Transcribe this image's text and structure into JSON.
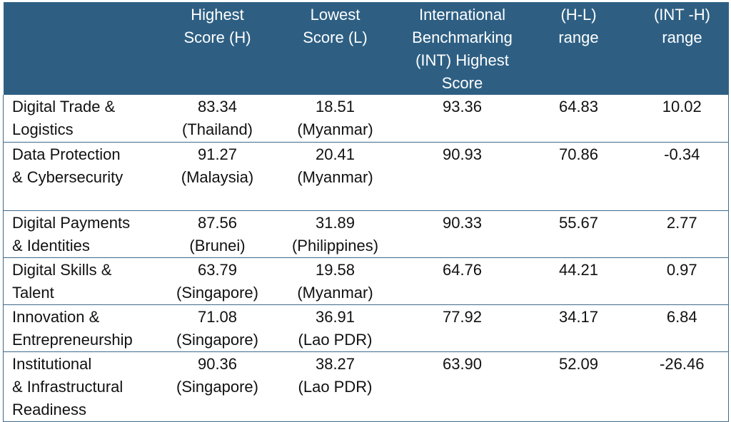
{
  "table": {
    "headers": [
      "",
      "Highest\nScore (H)",
      "Lowest\nScore (L)",
      "International\nBenchmarking\n(INT) Highest\nScore",
      "(H-L)\nrange",
      "(INT -H)\nrange"
    ],
    "header_lines": [
      [],
      [
        "Highest",
        "Score (H)"
      ],
      [
        "Lowest",
        "Score (L)"
      ],
      [
        "International",
        "Benchmarking",
        "(INT) Highest",
        "Score"
      ],
      [
        "(H-L)",
        "range"
      ],
      [
        "(INT -H)",
        "range"
      ]
    ],
    "rows": [
      {
        "category": [
          "Digital Trade &",
          "Logistics"
        ],
        "highest": [
          "83.34",
          "(Thailand)"
        ],
        "lowest": [
          "18.51",
          "(Myanmar)"
        ],
        "int_highest": "93.36",
        "h_l_range": "64.83",
        "int_h_range": "10.02"
      },
      {
        "category": [
          "Data Protection",
          "& Cybersecurity"
        ],
        "highest": [
          "91.27",
          "(Malaysia)"
        ],
        "lowest": [
          "20.41",
          "(Myanmar)"
        ],
        "int_highest": "90.93",
        "h_l_range": "70.86",
        "int_h_range": "-0.34"
      },
      {
        "category": [
          "Digital Payments",
          "& Identities"
        ],
        "highest": [
          "87.56",
          "(Brunei)"
        ],
        "lowest": [
          "31.89",
          "(Philippines)"
        ],
        "int_highest": "90.33",
        "h_l_range": "55.67",
        "int_h_range": "2.77"
      },
      {
        "category": [
          "Digital Skills &",
          "Talent"
        ],
        "highest": [
          "63.79",
          "(Singapore)"
        ],
        "lowest": [
          "19.58",
          "(Myanmar)"
        ],
        "int_highest": "64.76",
        "h_l_range": "44.21",
        "int_h_range": "0.97"
      },
      {
        "category": [
          "Innovation &",
          "Entrepreneurship"
        ],
        "highest": [
          "71.08",
          "(Singapore)"
        ],
        "lowest": [
          "36.91",
          "(Lao PDR)"
        ],
        "int_highest": "77.92",
        "h_l_range": "34.17",
        "int_h_range": "6.84"
      },
      {
        "category": [
          "Institutional",
          "& Infrastructural",
          "Readiness"
        ],
        "highest": [
          "90.36",
          "(Singapore)"
        ],
        "lowest": [
          "38.27",
          "(Lao PDR)"
        ],
        "int_highest": "63.90",
        "h_l_range": "52.09",
        "int_h_range": "-26.46"
      }
    ]
  },
  "colors": {
    "header_bg": "#2e5f83",
    "header_text": "#ffffff",
    "border": "#3d6a8c",
    "body_text": "#111111"
  }
}
